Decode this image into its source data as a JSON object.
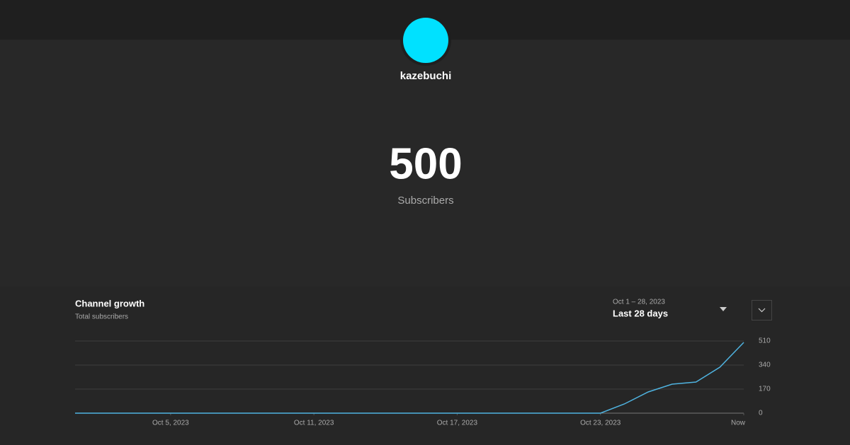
{
  "channel": {
    "name": "kazebuchi"
  },
  "stat": {
    "value": 500,
    "label": "Subscribers"
  },
  "chart_data": {
    "type": "line",
    "title": "Channel growth",
    "subtitle": "Total subscribers",
    "date_range": "Oct 1 – 28, 2023",
    "period": "Last 28 days",
    "x": [
      1,
      2,
      3,
      4,
      5,
      6,
      7,
      8,
      9,
      10,
      11,
      12,
      13,
      14,
      15,
      16,
      17,
      18,
      19,
      20,
      21,
      22,
      23,
      24,
      25,
      26,
      27,
      28,
      29
    ],
    "values": [
      0,
      0,
      0,
      0,
      0,
      0,
      0,
      0,
      0,
      0,
      0,
      0,
      0,
      0,
      0,
      0,
      0,
      0,
      0,
      0,
      0,
      0,
      0,
      65,
      150,
      205,
      220,
      325,
      500
    ],
    "color": "#4fb3e0",
    "xlim": [
      1,
      29
    ],
    "xticks": [
      {
        "value": 5,
        "label": "Oct 5, 2023"
      },
      {
        "value": 11,
        "label": "Oct 11, 2023"
      },
      {
        "value": 17,
        "label": "Oct 17, 2023"
      },
      {
        "value": 23,
        "label": "Oct 23, 2023"
      },
      {
        "value": 29,
        "label": "Now"
      }
    ],
    "ylim": [
      0,
      510
    ],
    "yticks": [
      0,
      170,
      340,
      510
    ],
    "grid": true
  }
}
